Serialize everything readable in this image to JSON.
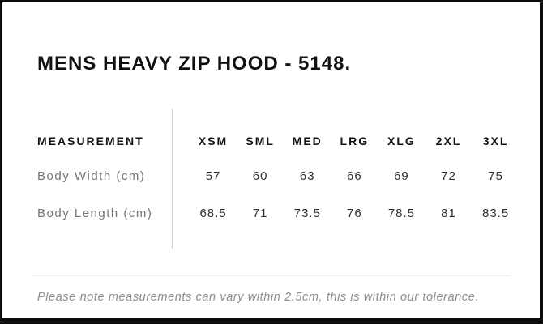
{
  "page": {
    "title": "MENS HEAVY ZIP HOOD - 5148.",
    "note": "Please note measurements can vary within 2.5cm, this is within our tolerance."
  },
  "table": {
    "measurement_header": "MEASUREMENT",
    "size_headers": [
      "XSM",
      "SML",
      "MED",
      "LRG",
      "XLG",
      "2XL",
      "3XL"
    ],
    "rows": [
      {
        "label": "Body Width (cm)",
        "values": [
          "57",
          "60",
          "63",
          "66",
          "69",
          "72",
          "75"
        ]
      },
      {
        "label": "Body Length (cm)",
        "values": [
          "68.5",
          "71",
          "73.5",
          "76",
          "78.5",
          "81",
          "83.5"
        ]
      }
    ]
  },
  "chart_data": {
    "type": "table",
    "title": "MENS HEAVY ZIP HOOD - 5148.",
    "columns": [
      "MEASUREMENT",
      "XSM",
      "SML",
      "MED",
      "LRG",
      "XLG",
      "2XL",
      "3XL"
    ],
    "rows": [
      [
        "Body Width (cm)",
        57,
        60,
        63,
        66,
        69,
        72,
        75
      ],
      [
        "Body Length (cm)",
        68.5,
        71,
        73.5,
        76,
        78.5,
        81,
        83.5
      ]
    ],
    "footnote": "Please note measurements can vary within 2.5cm, this is within our tolerance."
  },
  "colors": {
    "frame": "#0d0d0d",
    "background": "#ffffff",
    "heading_text": "#111111",
    "row_label_text": "#757575",
    "value_text": "#2e2e2e",
    "note_text": "#8c8c8c",
    "divider": "#cccccc"
  }
}
